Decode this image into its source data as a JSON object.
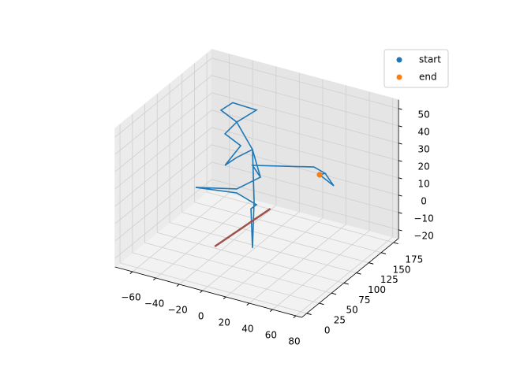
{
  "chart_data": {
    "type": "line3d",
    "xlim": [
      -75,
      85
    ],
    "ylim": [
      -10,
      185
    ],
    "zlim": [
      -25,
      55
    ],
    "xticks": [
      {
        "value": -60,
        "label": "−60"
      },
      {
        "value": -40,
        "label": "−40"
      },
      {
        "value": -20,
        "label": "−20"
      },
      0,
      20,
      40,
      60,
      80
    ],
    "yticks": [
      0,
      25,
      50,
      75,
      100,
      125,
      150,
      175
    ],
    "zticks": [
      {
        "value": -20,
        "label": "−20"
      },
      {
        "value": -10,
        "label": "−10"
      },
      0,
      10,
      20,
      30,
      40,
      50
    ],
    "grid": true,
    "legend": "upper right",
    "series": [
      {
        "color": "#1f77b4",
        "x": [
          53.5,
          65.7,
          58.2,
          48.7,
          -4,
          2.8,
          -17.5,
          -52.7,
          -17.5,
          -0.6,
          -5.3,
          13,
          -2.6,
          -4,
          -17.5,
          -27.6,
          -14.1,
          -27.6,
          -17.5,
          -31,
          -20.9,
          -10.7,
          -0.6,
          -17.5,
          -4,
          2.8,
          -4,
          48.7,
          58.2,
          53.5
        ],
        "y": [
          100,
          100,
          100,
          100,
          100,
          100,
          100,
          100,
          100,
          100,
          100,
          60,
          100,
          100,
          100,
          100,
          100,
          100,
          100,
          100,
          100,
          100,
          100,
          100,
          100,
          100,
          100,
          100,
          100,
          100
        ],
        "z": [
          25.9,
          21.7,
          27.6,
          29.5,
          20.9,
          15.3,
          4.8,
          -0.7,
          2.5,
          -1.2,
          -4.4,
          -14.4,
          0.7,
          30,
          23,
          16.6,
          30.4,
          34.8,
          43.4,
          47.8,
          54,
          53.7,
          53.4,
          43.4,
          30,
          15.3,
          20.9,
          29.5,
          27.6,
          25.9
        ]
      },
      {
        "color": "#a0524a",
        "x": [
          -27,
          -21
        ],
        "y": [
          78,
          176
        ],
        "z": [
          -25,
          -25
        ]
      }
    ],
    "points": [
      {
        "name": "start",
        "color": "#1f77b4",
        "x": 53.5,
        "y": 100,
        "z": 25.9
      },
      {
        "name": "end",
        "color": "#ff7f0e",
        "x": 53.5,
        "y": 100,
        "z": 25.9
      }
    ]
  }
}
